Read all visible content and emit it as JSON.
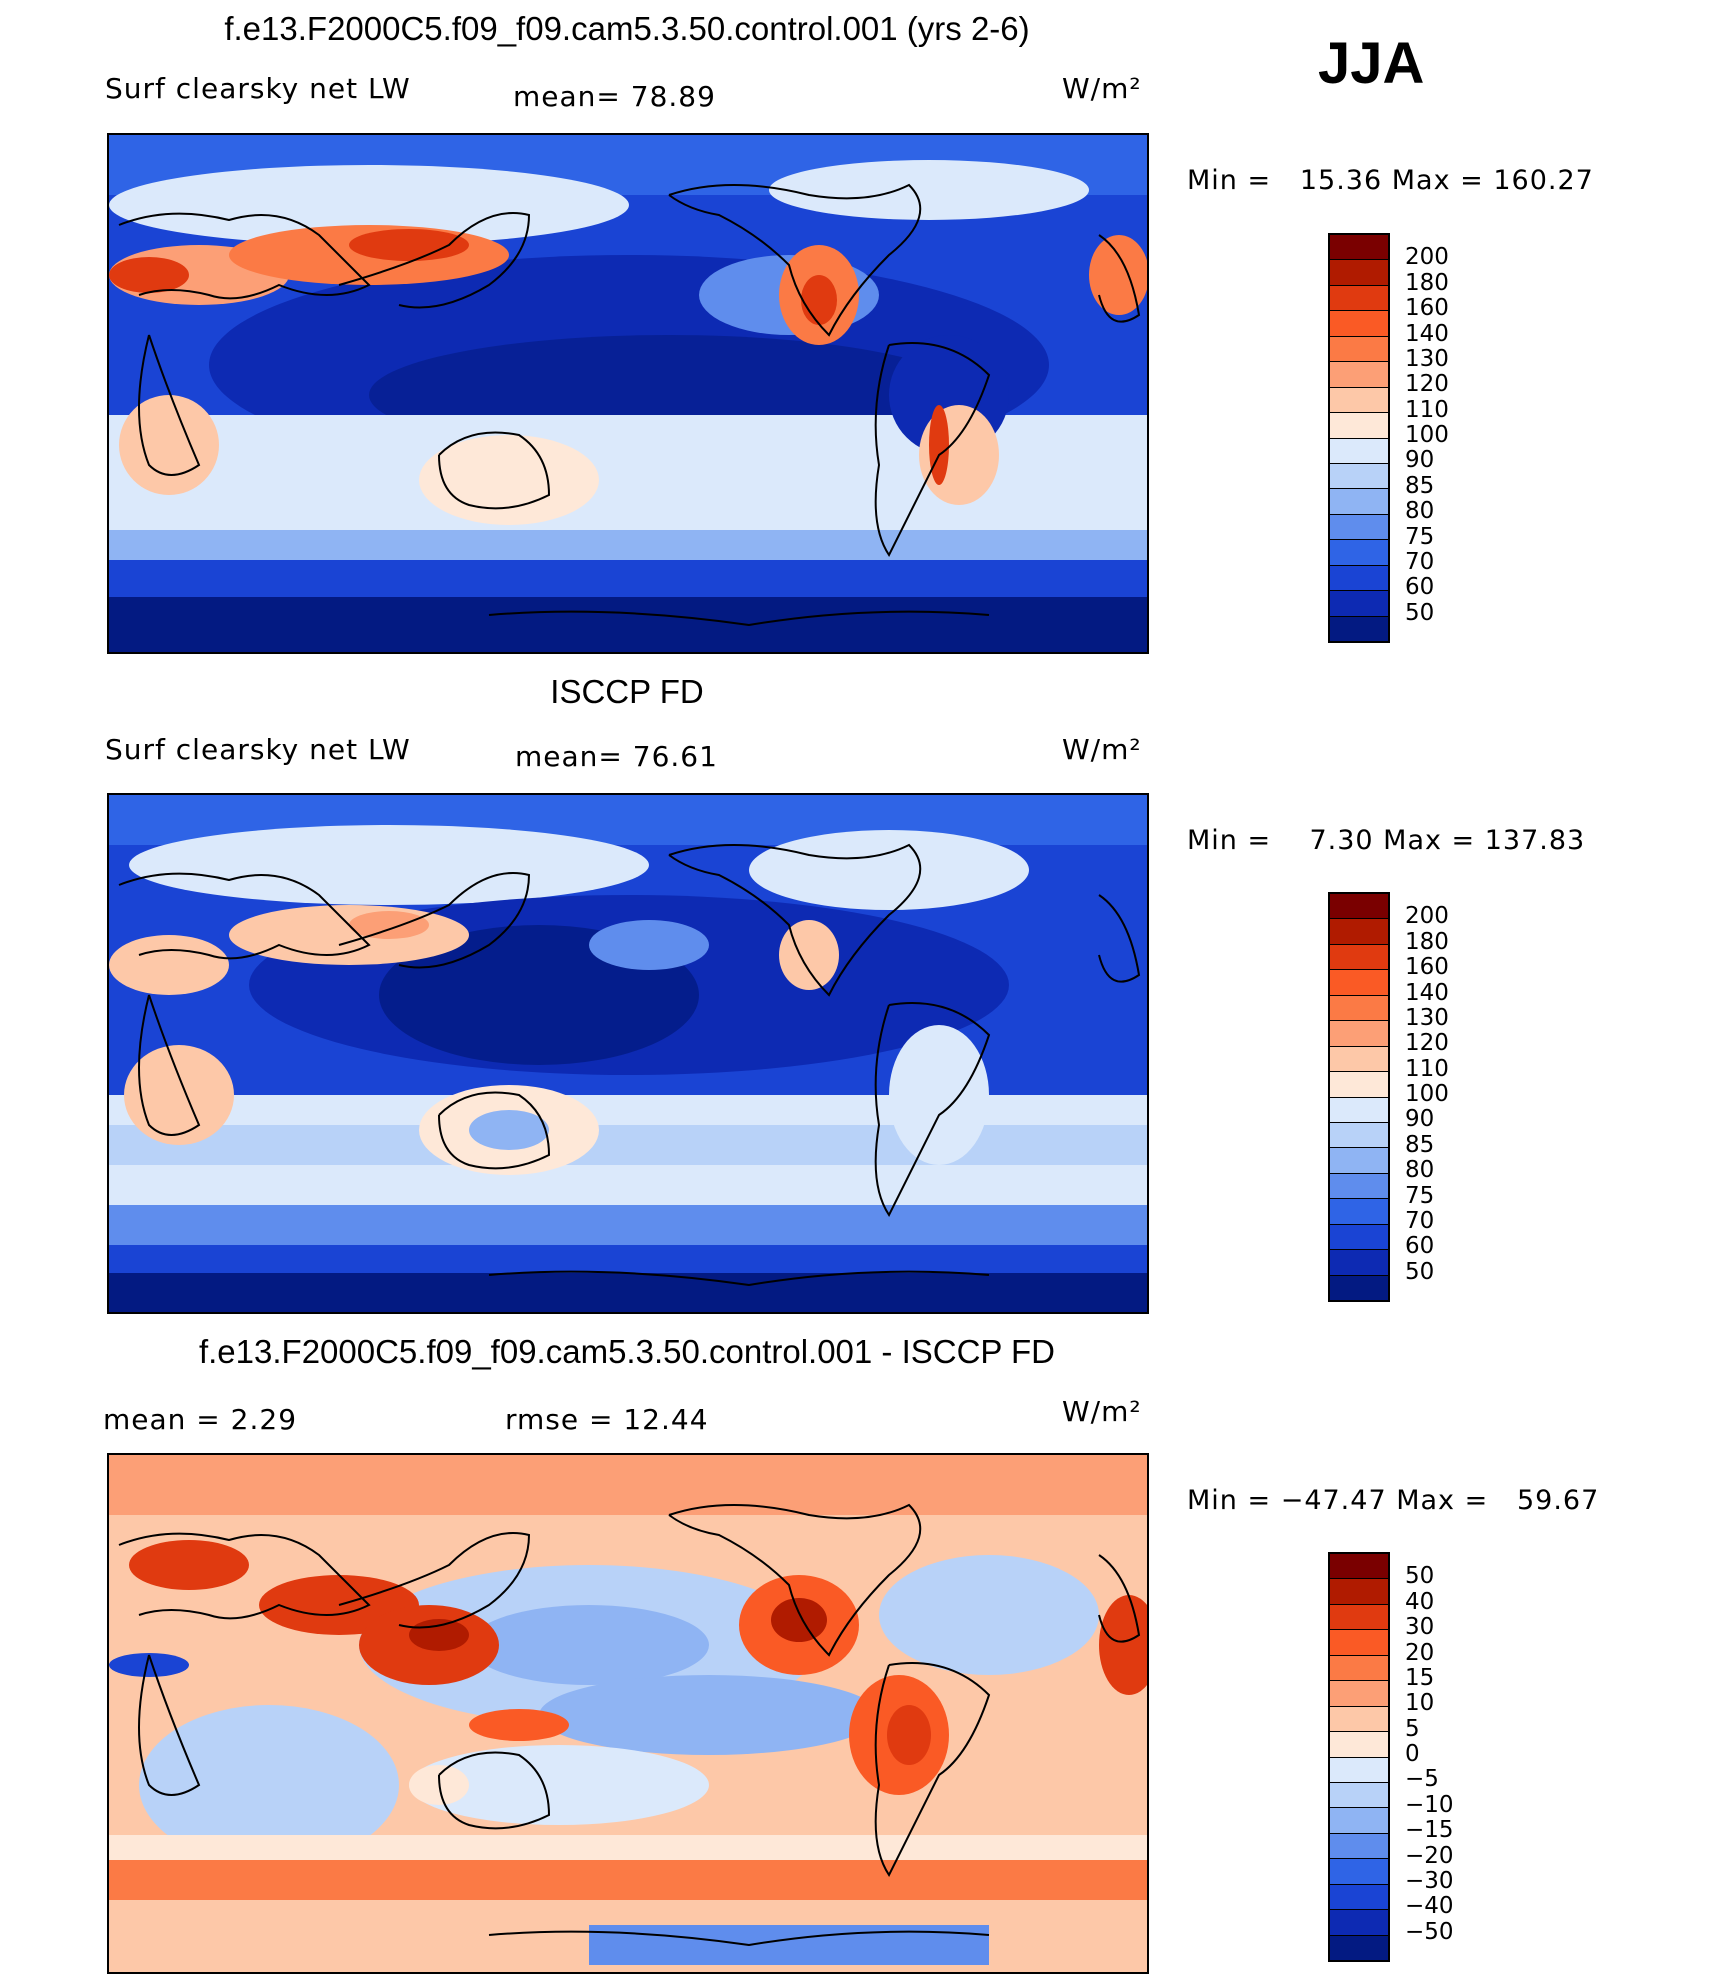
{
  "header": {
    "season": "JJA"
  },
  "panels": [
    {
      "title": "f.e13.F2000C5.f09_f09.cam5.3.50.control.001 (yrs 2-6)",
      "left_label": "Surf clearsky net LW",
      "mid_label": "mean=   78.89",
      "units": "W/m²",
      "minmax": "Min =   15.36 Max = 160.27",
      "colorbar": {
        "ticks": [
          "200",
          "180",
          "160",
          "140",
          "130",
          "120",
          "110",
          "100",
          "90",
          "85",
          "80",
          "75",
          "70",
          "60",
          "50"
        ],
        "colors": [
          "#7a0000",
          "#b01b00",
          "#e03a10",
          "#fa5a25",
          "#fb7a45",
          "#fc9f76",
          "#fdc8a8",
          "#fee8d8",
          "#dbe9fb",
          "#b8d2f8",
          "#8fb4f3",
          "#5f8ded",
          "#2f64e6",
          "#1a44d4",
          "#0d2ab3",
          "#031a82"
        ]
      },
      "palette": "abs"
    },
    {
      "title": "ISCCP FD",
      "left_label": "Surf clearsky net LW",
      "mid_label": "mean=   76.61",
      "units": "W/m²",
      "minmax": "Min =    7.30 Max = 137.83",
      "colorbar": {
        "ticks": [
          "200",
          "180",
          "160",
          "140",
          "130",
          "120",
          "110",
          "100",
          "90",
          "85",
          "80",
          "75",
          "70",
          "60",
          "50"
        ],
        "colors": [
          "#7a0000",
          "#b01b00",
          "#e03a10",
          "#fa5a25",
          "#fb7a45",
          "#fc9f76",
          "#fdc8a8",
          "#fee8d8",
          "#dbe9fb",
          "#b8d2f8",
          "#8fb4f3",
          "#5f8ded",
          "#2f64e6",
          "#1a44d4",
          "#0d2ab3",
          "#031a82"
        ]
      },
      "palette": "abs"
    },
    {
      "title": "f.e13.F2000C5.f09_f09.cam5.3.50.control.001 - ISCCP FD",
      "left_label": "mean =     2.29",
      "mid_label": "rmse =    12.44",
      "units": "W/m²",
      "minmax": "Min = −47.47 Max =   59.67",
      "colorbar": {
        "ticks": [
          "50",
          "40",
          "30",
          "20",
          "15",
          "10",
          "5",
          "0",
          "−5",
          "−10",
          "−15",
          "−20",
          "−30",
          "−40",
          "−50"
        ],
        "colors": [
          "#7a0000",
          "#b01b00",
          "#e03a10",
          "#fa5a25",
          "#fb7a45",
          "#fc9f76",
          "#fdc8a8",
          "#fee8d8",
          "#dbe9fb",
          "#b8d2f8",
          "#8fb4f3",
          "#5f8ded",
          "#2f64e6",
          "#1a44d4",
          "#0d2ab3",
          "#031a82"
        ]
      },
      "palette": "diff"
    }
  ]
}
